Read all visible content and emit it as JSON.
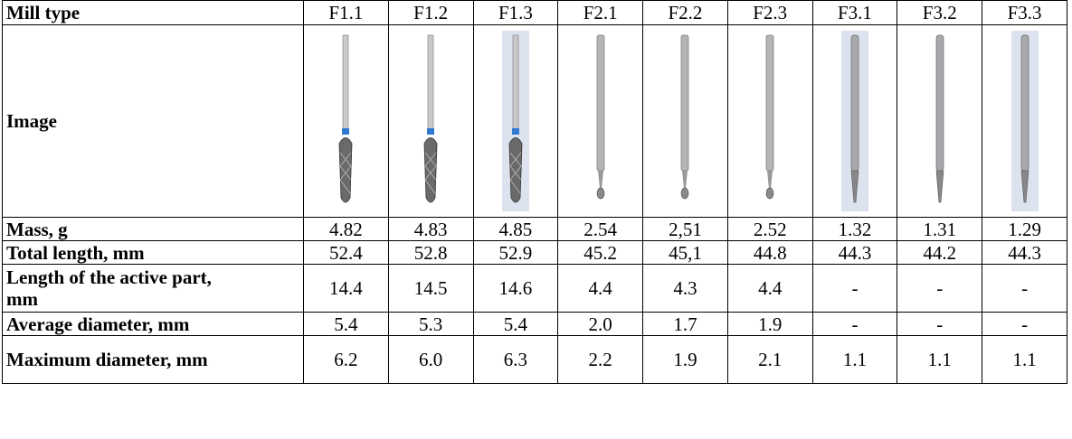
{
  "table": {
    "header": [
      "Mill type",
      "F1.1",
      "F1.2",
      "F1.3",
      "F2.1",
      "F2.2",
      "F2.3",
      "F3.1",
      "F3.2",
      "F3.3"
    ],
    "image_row_label": "Image",
    "rows": [
      [
        "Mass, g",
        "4.82",
        "4.83",
        "4.85",
        "2.54",
        "2,51",
        "2.52",
        "1.32",
        "1.31",
        "1.29"
      ],
      [
        "Total length, mm",
        "52.4",
        "52.8",
        "52.9",
        "45.2",
        "45,1",
        "44.8",
        "44.3",
        "44.2",
        "44.3"
      ],
      [
        "Length of the active part, mm",
        "14.4",
        "14.5",
        "14.6",
        "4.4",
        "4.3",
        "4.4",
        "-",
        "-",
        "-"
      ],
      [
        "Average diameter, mm",
        "5.4",
        "5.3",
        "5.4",
        "2.0",
        "1.7",
        "1.9",
        "-",
        "-",
        "-"
      ],
      [
        "Maximum diameter, mm",
        "6.2",
        "6.0",
        "6.3",
        "2.2",
        "1.9",
        "2.1",
        "1.1",
        "1.1",
        "1.1"
      ]
    ]
  }
}
